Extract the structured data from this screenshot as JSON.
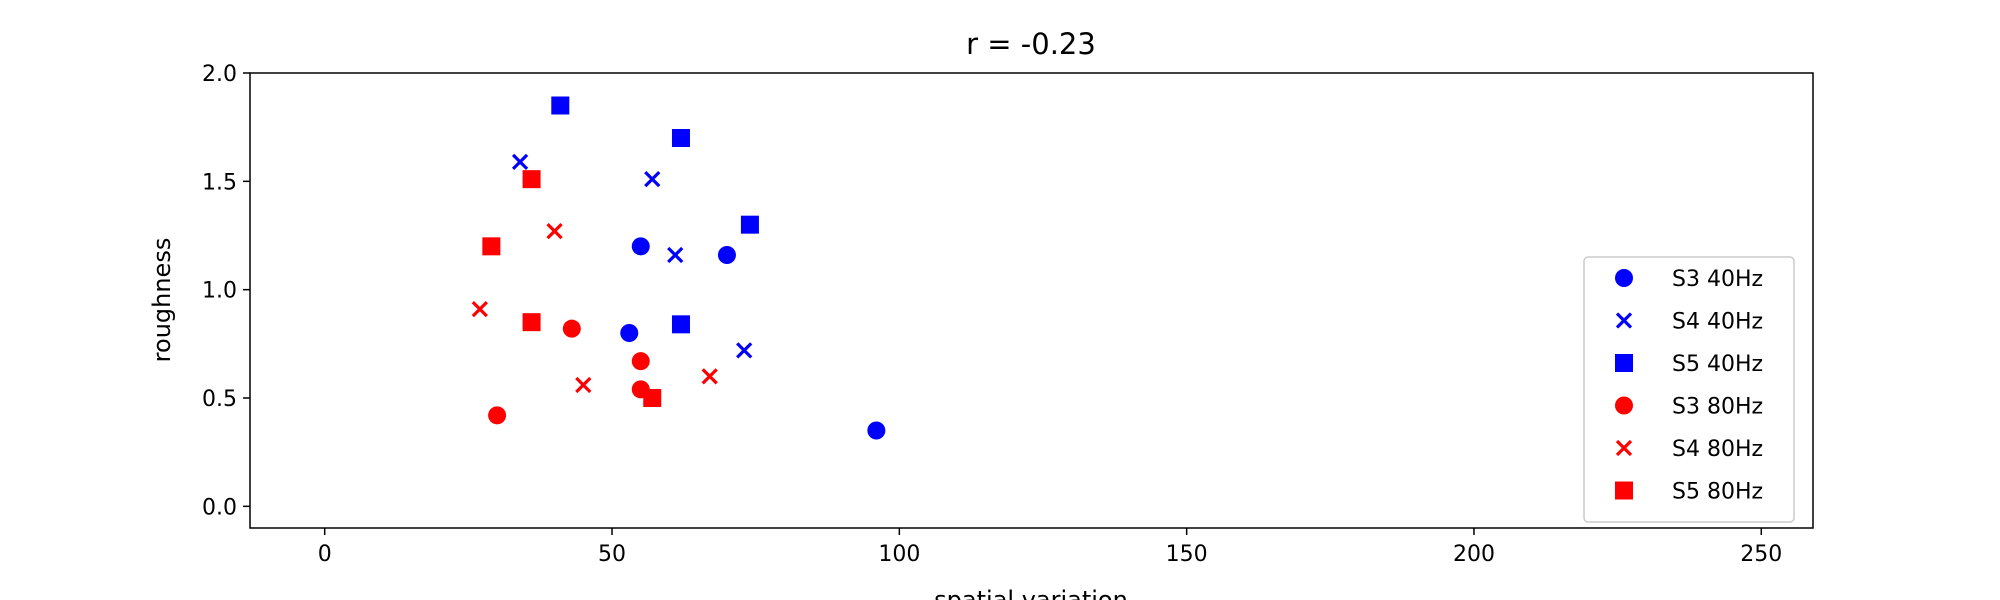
{
  "chart_data": {
    "type": "scatter",
    "title": "r = -0.23",
    "xlabel": "spatial variation",
    "ylabel": "roughness",
    "xlim": [
      -13,
      259
    ],
    "ylim": [
      -0.1,
      2.0
    ],
    "xticks": [
      0,
      50,
      100,
      150,
      200,
      250
    ],
    "yticks": [
      0.0,
      0.5,
      1.0,
      1.5,
      2.0
    ],
    "xtick_labels": [
      "0",
      "50",
      "100",
      "150",
      "200",
      "250"
    ],
    "ytick_labels": [
      "0.0",
      "0.5",
      "1.0",
      "1.5",
      "2.0"
    ],
    "grid": false,
    "legend_position": "center-right",
    "series": [
      {
        "name": "S3 40Hz",
        "marker": "circle",
        "color": "#0000ff",
        "points": [
          [
            55,
            1.2
          ],
          [
            70,
            1.16
          ],
          [
            53,
            0.8
          ],
          [
            96,
            0.35
          ]
        ]
      },
      {
        "name": "S4 40Hz",
        "marker": "x",
        "color": "#0000ff",
        "points": [
          [
            34,
            1.59
          ],
          [
            57,
            1.51
          ],
          [
            61,
            1.16
          ],
          [
            73,
            0.72
          ]
        ]
      },
      {
        "name": "S5 40Hz",
        "marker": "square",
        "color": "#0000ff",
        "points": [
          [
            41,
            1.85
          ],
          [
            62,
            1.7
          ],
          [
            74,
            1.3
          ],
          [
            62,
            0.84
          ]
        ]
      },
      {
        "name": "S3 80Hz",
        "marker": "circle",
        "color": "#ff0000",
        "points": [
          [
            43,
            0.82
          ],
          [
            55,
            0.67
          ],
          [
            55,
            0.54
          ],
          [
            30,
            0.42
          ]
        ]
      },
      {
        "name": "S4 80Hz",
        "marker": "x",
        "color": "#ff0000",
        "points": [
          [
            40,
            1.27
          ],
          [
            27,
            0.91
          ],
          [
            45,
            0.56
          ],
          [
            67,
            0.6
          ]
        ]
      },
      {
        "name": "S5 80Hz",
        "marker": "square",
        "color": "#ff0000",
        "points": [
          [
            36,
            1.51
          ],
          [
            29,
            1.2
          ],
          [
            36,
            0.85
          ],
          [
            57,
            0.5
          ]
        ]
      }
    ]
  }
}
